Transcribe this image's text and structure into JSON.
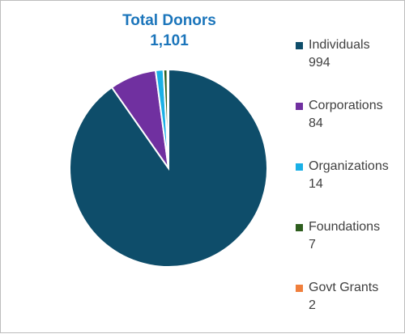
{
  "chart_data": {
    "type": "pie",
    "title": "Total Donors",
    "subtitle": "1,101",
    "categories": [
      "Individuals",
      "Corporations",
      "Organizations",
      "Foundations",
      "Govt Grants"
    ],
    "values": [
      994,
      84,
      14,
      7,
      2
    ],
    "value_labels": [
      "994",
      "84",
      "14",
      "7",
      "2"
    ],
    "colors": [
      "#0e4d6a",
      "#7030a0",
      "#1ab0e6",
      "#2e5e1e",
      "#f07f3c"
    ],
    "legend_position": "right"
  }
}
